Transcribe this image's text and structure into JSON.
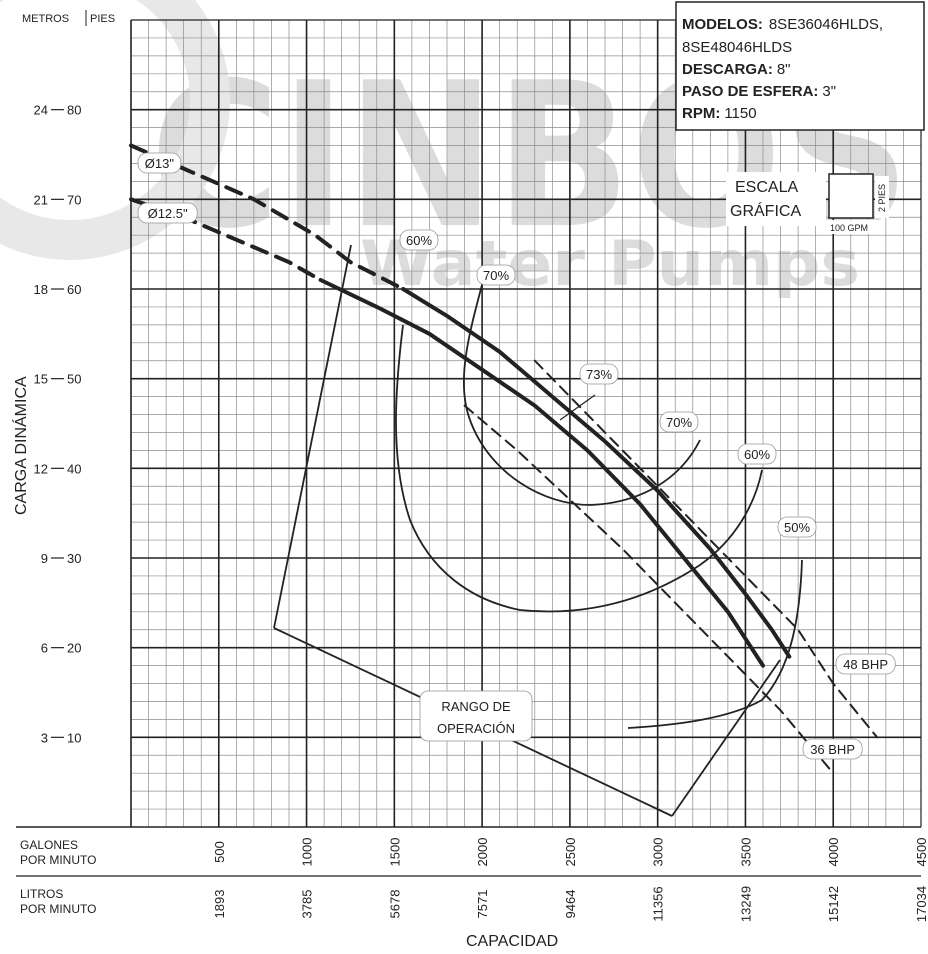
{
  "watermark": {
    "brand": "CINBOS",
    "tagline": "Water Pumps"
  },
  "info_box": {
    "models_label": "MODELOS:",
    "models_line1": "8SE36046HLDS,",
    "models_line2": "8SE48046HLDS",
    "discharge_label": "DESCARGA:",
    "discharge_value": "8\"",
    "sphere_label": "PASO DE ESFERA:",
    "sphere_value": "3\"",
    "rpm_label": "RPM:",
    "rpm_value": "1150"
  },
  "scale": {
    "line1": "ESCALA",
    "line2": "GRÁFICA",
    "vertical": "2 PIES",
    "horizontal": "100 GPM"
  },
  "chart_data": {
    "type": "line",
    "ylabel": "CARGA DINÁMICA",
    "xlabel": "CAPACIDAD",
    "y_unit_labels": {
      "left": "METROS",
      "right": "PIES"
    },
    "y_ticks": [
      {
        "m": "3",
        "ft": "10"
      },
      {
        "m": "6",
        "ft": "20"
      },
      {
        "m": "9",
        "ft": "30"
      },
      {
        "m": "12",
        "ft": "40"
      },
      {
        "m": "15",
        "ft": "50"
      },
      {
        "m": "18",
        "ft": "60"
      },
      {
        "m": "21",
        "ft": "70"
      },
      {
        "m": "24",
        "ft": "80"
      }
    ],
    "ylim_ft": [
      0,
      90
    ],
    "xlim_gpm": [
      0,
      4500
    ],
    "x_axis_gpm": {
      "label_line1": "GALONES",
      "label_line2": "POR MINUTO",
      "ticks": [
        "500",
        "1000",
        "1500",
        "2000",
        "2500",
        "3000",
        "3500",
        "4000",
        "4500"
      ]
    },
    "x_axis_lpm": {
      "label_line1": "LITROS",
      "label_line2": "POR MINUTO",
      "ticks": [
        "1893",
        "3785",
        "5678",
        "7571",
        "9464",
        "11356",
        "13249",
        "15142",
        "17034"
      ]
    },
    "series": [
      {
        "name": "Ø13\"",
        "style": "solid-bold",
        "x_gpm": [
          1550,
          1800,
          2100,
          2400,
          2700,
          3000,
          3300,
          3500,
          3650,
          3750
        ],
        "y_ft": [
          60,
          57,
          53,
          48,
          43,
          37.5,
          31,
          26,
          22,
          19
        ]
      },
      {
        "name": "Ø13\"",
        "style": "dash-bold",
        "x_gpm": [
          0,
          350,
          700,
          1050,
          1250,
          1400,
          1550
        ],
        "y_ft": [
          76,
          73,
          70,
          66,
          63,
          61.5,
          60
        ]
      },
      {
        "name": "Ø12.5\"",
        "style": "solid-bold",
        "x_gpm": [
          1080,
          1400,
          1700,
          2000,
          2300,
          2600,
          2900,
          3150,
          3400,
          3600
        ],
        "y_ft": [
          61,
          58,
          55,
          51,
          47,
          42,
          36,
          30,
          24,
          18
        ]
      },
      {
        "name": "Ø12.5\"",
        "style": "dash-bold",
        "x_gpm": [
          0,
          300,
          600,
          900,
          1080
        ],
        "y_ft": [
          70,
          68,
          65.5,
          63,
          61
        ]
      },
      {
        "name": "48 BHP",
        "style": "dashed",
        "x_gpm": [
          2300,
          2600,
          2900,
          3200,
          3500,
          3800,
          4000,
          4250
        ],
        "y_ft": [
          52,
          46,
          40,
          34,
          28,
          22,
          16,
          10
        ]
      },
      {
        "name": "36 BHP",
        "style": "dashed",
        "x_gpm": [
          1900,
          2200,
          2500,
          2800,
          3100,
          3400,
          3700,
          4000
        ],
        "y_ft": [
          47,
          42,
          36.5,
          31,
          25,
          19,
          13,
          6
        ]
      }
    ],
    "efficiency_labels": [
      "60%",
      "70%",
      "73%",
      "70%",
      "60%",
      "50%"
    ],
    "annotations": {
      "region": "RANGO DE OPERACIÓN",
      "bhp_48": "48 BHP",
      "bhp_36": "36 BHP"
    }
  }
}
